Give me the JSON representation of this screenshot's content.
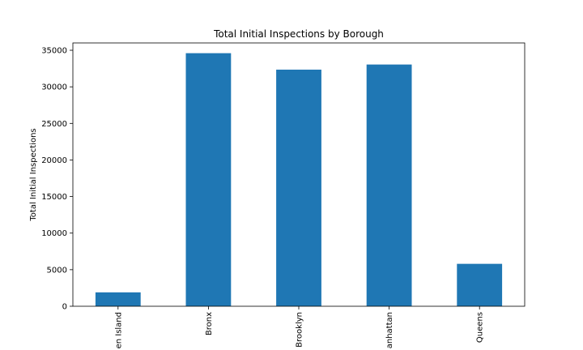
{
  "chart_data": {
    "type": "bar",
    "title": "Total Initial Inspections by Borough",
    "xlabel": "",
    "ylabel": "Total Initial Inspections",
    "categories": [
      "en Island",
      "Bronx",
      "Brooklyn",
      "anhattan",
      "Queens"
    ],
    "values": [
      1900,
      34600,
      32350,
      33050,
      5800
    ],
    "ylim": [
      0,
      36000
    ],
    "yticks": [
      0,
      5000,
      10000,
      15000,
      20000,
      25000,
      30000,
      35000
    ],
    "bar_color": "#1f77b4",
    "grid": false,
    "legend": "none"
  }
}
